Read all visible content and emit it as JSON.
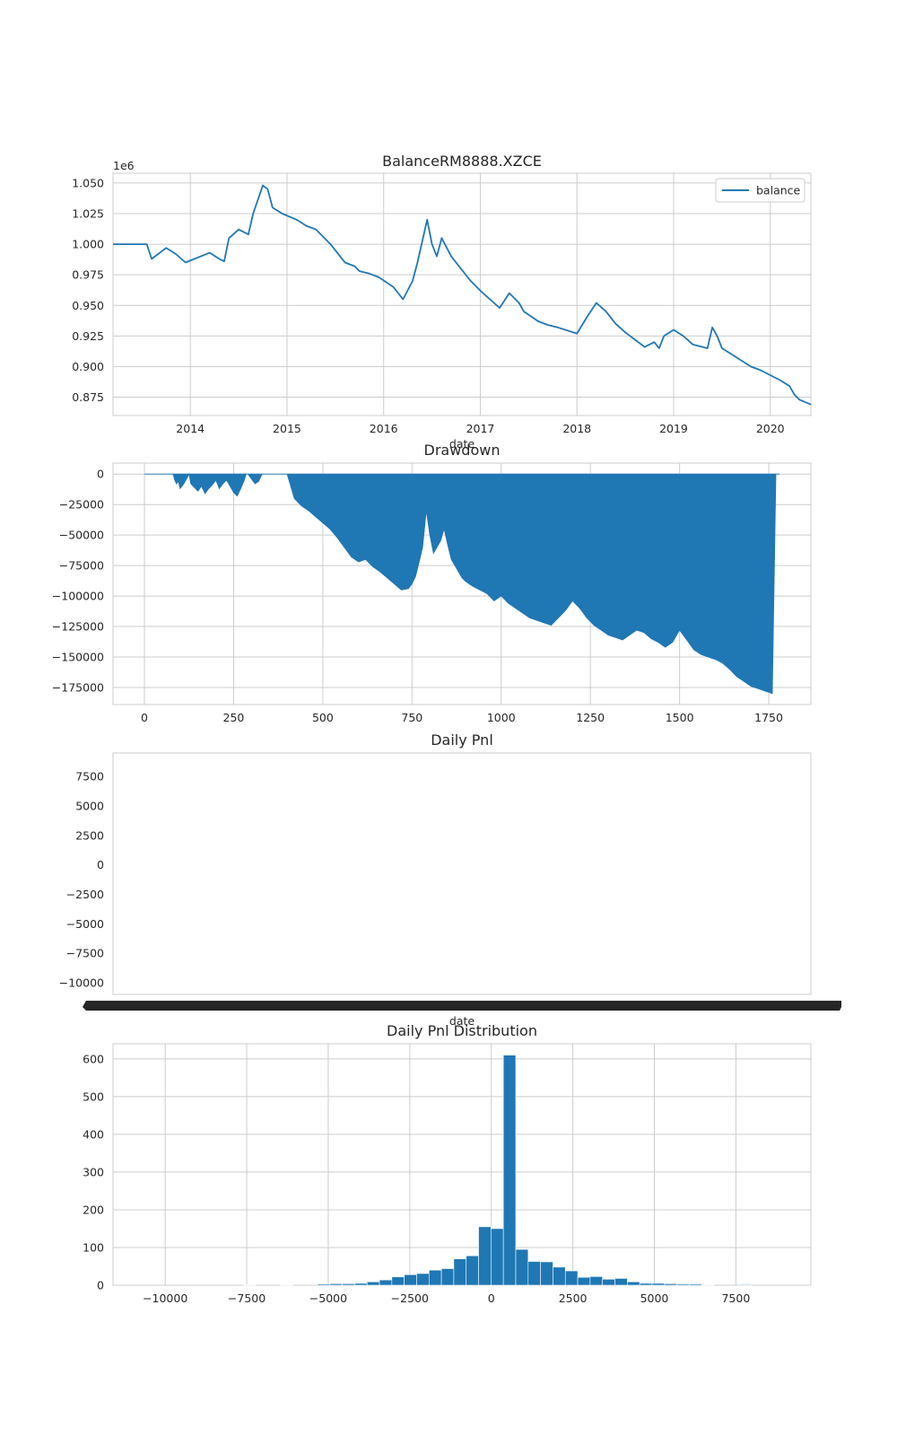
{
  "figure": {
    "background": "#ffffff",
    "series_color": "#1f77b4",
    "grid_color": "#cccccc"
  },
  "chart_data": [
    {
      "type": "line",
      "title": "BalanceRM8888.XZCE",
      "xlabel": "date",
      "ylabel": "",
      "y_offset_text": "1e6",
      "x_ticks": [
        "2014",
        "2015",
        "2016",
        "2017",
        "2018",
        "2019",
        "2020"
      ],
      "y_ticks": [
        "0.875",
        "0.900",
        "0.925",
        "0.950",
        "0.975",
        "1.000",
        "1.025",
        "1.050"
      ],
      "ylim": [
        0.86,
        1.058
      ],
      "legend": {
        "position": "upper right",
        "labels": [
          "balance"
        ]
      },
      "grid": true,
      "series": [
        {
          "name": "balance",
          "x": [
            2013.2,
            2013.55,
            2013.6,
            2013.75,
            2013.85,
            2013.95,
            2014.2,
            2014.3,
            2014.35,
            2014.4,
            2014.5,
            2014.6,
            2014.65,
            2014.75,
            2014.8,
            2014.85,
            2014.95,
            2015.1,
            2015.2,
            2015.3,
            2015.45,
            2015.55,
            2015.6,
            2015.7,
            2015.75,
            2015.85,
            2015.95,
            2016.1,
            2016.2,
            2016.3,
            2016.35,
            2016.45,
            2016.5,
            2016.55,
            2016.6,
            2016.7,
            2016.8,
            2016.9,
            2017.0,
            2017.1,
            2017.2,
            2017.3,
            2017.4,
            2017.45,
            2017.6,
            2017.7,
            2017.8,
            2018.0,
            2018.1,
            2018.2,
            2018.3,
            2018.4,
            2018.5,
            2018.6,
            2018.7,
            2018.8,
            2018.85,
            2018.9,
            2019.0,
            2019.1,
            2019.2,
            2019.3,
            2019.35,
            2019.4,
            2019.45,
            2019.5,
            2019.6,
            2019.7,
            2019.8,
            2019.9,
            2020.0,
            2020.1,
            2020.2,
            2020.25,
            2020.3,
            2020.42
          ],
          "values": [
            1.0,
            1.0,
            0.988,
            0.997,
            0.992,
            0.985,
            0.993,
            0.988,
            0.986,
            1.005,
            1.012,
            1.008,
            1.025,
            1.048,
            1.045,
            1.03,
            1.025,
            1.02,
            1.015,
            1.012,
            1.0,
            0.99,
            0.985,
            0.982,
            0.978,
            0.976,
            0.973,
            0.965,
            0.955,
            0.97,
            0.985,
            1.02,
            1.0,
            0.99,
            1.005,
            0.99,
            0.98,
            0.97,
            0.962,
            0.955,
            0.948,
            0.96,
            0.952,
            0.945,
            0.937,
            0.934,
            0.932,
            0.927,
            0.94,
            0.952,
            0.945,
            0.935,
            0.928,
            0.922,
            0.916,
            0.92,
            0.915,
            0.925,
            0.93,
            0.925,
            0.918,
            0.916,
            0.915,
            0.932,
            0.925,
            0.915,
            0.91,
            0.905,
            0.9,
            0.897,
            0.893,
            0.889,
            0.884,
            0.877,
            0.873,
            0.869
          ]
        }
      ]
    },
    {
      "type": "area",
      "title": "Drawdown",
      "xlabel": "",
      "ylabel": "",
      "x_ticks": [
        "0",
        "250",
        "500",
        "750",
        "1000",
        "1250",
        "1500",
        "1750"
      ],
      "y_ticks": [
        "0",
        "−25000",
        "−50000",
        "−75000",
        "−100000",
        "−125000",
        "−150000",
        "−175000"
      ],
      "xlim": [
        -88,
        1868
      ],
      "ylim": [
        -189000,
        9000
      ],
      "grid": true,
      "series": [
        {
          "name": "drawdown",
          "x": [
            0,
            80,
            85,
            90,
            95,
            100,
            110,
            120,
            125,
            130,
            150,
            160,
            170,
            180,
            190,
            200,
            210,
            220,
            230,
            240,
            250,
            260,
            270,
            280,
            285,
            290,
            300,
            310,
            320,
            330,
            340,
            350,
            400,
            410,
            420,
            440,
            460,
            480,
            500,
            520,
            540,
            560,
            580,
            600,
            620,
            640,
            660,
            680,
            700,
            720,
            740,
            750,
            760,
            770,
            780,
            790,
            800,
            810,
            820,
            830,
            840,
            850,
            860,
            870,
            880,
            890,
            900,
            920,
            940,
            960,
            980,
            1000,
            1020,
            1040,
            1060,
            1080,
            1100,
            1120,
            1140,
            1160,
            1180,
            1200,
            1220,
            1240,
            1260,
            1280,
            1300,
            1320,
            1340,
            1360,
            1380,
            1400,
            1420,
            1440,
            1460,
            1480,
            1500,
            1520,
            1540,
            1560,
            1580,
            1600,
            1620,
            1640,
            1660,
            1680,
            1700,
            1720,
            1740,
            1750,
            1760,
            1770,
            1780
          ],
          "values": [
            0,
            0,
            -5000,
            -8000,
            -6000,
            -12000,
            -8000,
            -3000,
            0,
            -8000,
            -14000,
            -10000,
            -16000,
            -12000,
            -9000,
            -5000,
            -12000,
            -8000,
            -5000,
            -10000,
            -15000,
            -18000,
            -12000,
            -5000,
            0,
            0,
            -4000,
            -8000,
            -6000,
            0,
            0,
            0,
            0,
            -10000,
            -20000,
            -26000,
            -30000,
            -35000,
            -40000,
            -45000,
            -52000,
            -60000,
            -68000,
            -72000,
            -70000,
            -76000,
            -80000,
            -85000,
            -90000,
            -95000,
            -94000,
            -90000,
            -84000,
            -72000,
            -60000,
            -30000,
            -50000,
            -65000,
            -60000,
            -55000,
            -45000,
            -58000,
            -70000,
            -75000,
            -80000,
            -85000,
            -88000,
            -92000,
            -95000,
            -98000,
            -104000,
            -100000,
            -106000,
            -110000,
            -114000,
            -118000,
            -120000,
            -122000,
            -124000,
            -118000,
            -112000,
            -104000,
            -110000,
            -118000,
            -124000,
            -128000,
            -132000,
            -134000,
            -136000,
            -132000,
            -128000,
            -130000,
            -135000,
            -138000,
            -142000,
            -138000,
            -128000,
            -136000,
            -144000,
            -148000,
            -150000,
            -152000,
            -155000,
            -160000,
            -166000,
            -170000,
            -174000,
            -176000,
            -178000,
            -179000,
            -180000,
            0,
            0
          ]
        }
      ]
    },
    {
      "type": "bar",
      "title": "Daily Pnl",
      "xlabel": "date",
      "ylabel": "",
      "y_ticks": [
        "7500",
        "5000",
        "2500",
        "0",
        "−2500",
        "−5000",
        "−7500",
        "−10000"
      ],
      "ylim": [
        -11000,
        9500
      ],
      "grid": false,
      "note": "x tick labels overlap into a solid black band"
    },
    {
      "type": "bar",
      "title": "Daily Pnl Distribution",
      "xlabel": "",
      "ylabel": "",
      "x_ticks": [
        "−10000",
        "−7500",
        "−5000",
        "−2500",
        "0",
        "2500",
        "5000",
        "7500"
      ],
      "y_ticks": [
        "0",
        "100",
        "200",
        "300",
        "400",
        "500",
        "600"
      ],
      "xlim": [
        -11600,
        9800
      ],
      "ylim": [
        0,
        640
      ],
      "grid": true,
      "bin_edges": [
        -10650,
        -10270,
        -9890,
        -9510,
        -9130,
        -8750,
        -8370,
        -7990,
        -7610,
        -7230,
        -6850,
        -6470,
        -6090,
        -5710,
        -5330,
        -4950,
        -4570,
        -4190,
        -3810,
        -3430,
        -3050,
        -2670,
        -2290,
        -1910,
        -1530,
        -1150,
        -770,
        -390,
        -10,
        370,
        750,
        1130,
        1510,
        1890,
        2270,
        2650,
        3030,
        3410,
        3790,
        4170,
        4550,
        4930,
        5310,
        5690,
        6070,
        6450,
        6830,
        7210,
        7590,
        7970,
        8350,
        8730,
        9110
      ],
      "values": [
        0,
        0,
        0,
        0,
        0,
        0,
        0,
        0,
        1,
        0,
        0,
        1,
        0,
        0,
        3,
        4,
        4,
        5,
        9,
        14,
        22,
        28,
        31,
        40,
        44,
        70,
        78,
        155,
        150,
        610,
        95,
        63,
        62,
        48,
        38,
        21,
        23,
        16,
        18,
        9,
        5,
        5,
        4,
        3,
        3,
        1,
        0,
        0,
        2,
        0,
        0,
        0
      ]
    }
  ]
}
